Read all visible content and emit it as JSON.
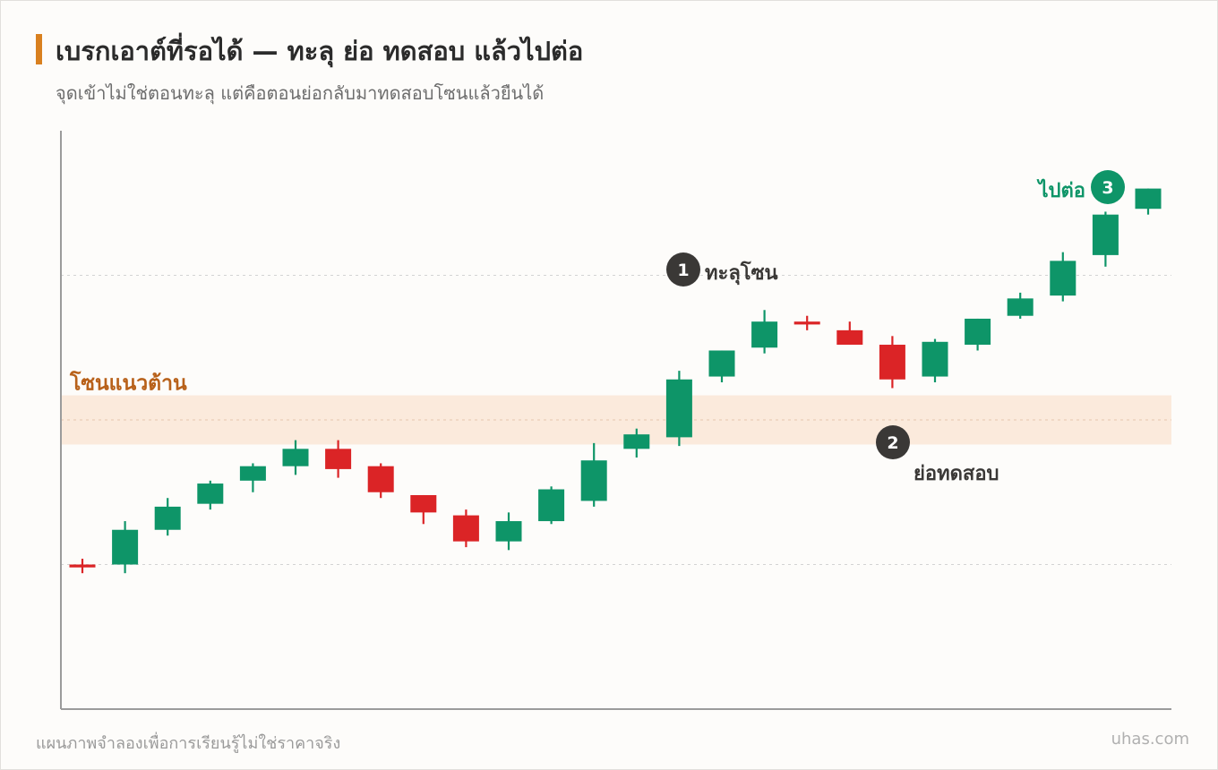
{
  "header": {
    "title": "เบรกเอาต์ที่รอได้ — ทะลุ ย่อ ทดสอบ แล้วไปต่อ",
    "subtitle": "จุดเข้าไม่ใช่ตอนทะลุ แต่คือตอนย่อกลับมาทดสอบโซนแล้วยืนได้"
  },
  "footer": {
    "note": "แผนภาพจำลองเพื่อการเรียนรู้ไม่ใช่ราคาจริง",
    "brand": "uhas.com"
  },
  "colors": {
    "up": "#0e9568",
    "down": "#db2426",
    "zone_fill": "#fbeadc",
    "zone_label": "#b8611a",
    "annotation_dark": "#3a3836",
    "annotation_green": "#0e9568",
    "axis": "#9b9b9b",
    "grid": "#d3d3d3"
  },
  "chart_data": {
    "type": "candlestick",
    "y_range": [
      0,
      100
    ],
    "grid_levels": [
      25,
      50,
      75
    ],
    "resistance_zone": {
      "low": 45.75,
      "high": 54.25,
      "label": "โซนแนวต้าน"
    },
    "candles": [
      {
        "o": 25.0,
        "h": 26.0,
        "l": 23.5,
        "c": 24.5
      },
      {
        "o": 25.0,
        "h": 32.5,
        "l": 23.5,
        "c": 31.0
      },
      {
        "o": 31.0,
        "h": 36.5,
        "l": 30.0,
        "c": 35.0
      },
      {
        "o": 35.5,
        "h": 39.5,
        "l": 34.5,
        "c": 39.0
      },
      {
        "o": 39.5,
        "h": 42.5,
        "l": 37.5,
        "c": 42.0
      },
      {
        "o": 42.0,
        "h": 46.5,
        "l": 40.5,
        "c": 45.0
      },
      {
        "o": 45.0,
        "h": 46.5,
        "l": 40.0,
        "c": 41.5
      },
      {
        "o": 42.0,
        "h": 42.5,
        "l": 36.5,
        "c": 37.5
      },
      {
        "o": 37.0,
        "h": 37.0,
        "l": 32.0,
        "c": 34.0
      },
      {
        "o": 33.5,
        "h": 34.5,
        "l": 28.0,
        "c": 29.0
      },
      {
        "o": 29.0,
        "h": 34.0,
        "l": 27.5,
        "c": 32.5
      },
      {
        "o": 32.5,
        "h": 38.5,
        "l": 32.0,
        "c": 38.0
      },
      {
        "o": 36.0,
        "h": 46.0,
        "l": 35.0,
        "c": 43.0
      },
      {
        "o": 45.0,
        "h": 48.5,
        "l": 43.5,
        "c": 47.5
      },
      {
        "o": 47.0,
        "h": 58.5,
        "l": 45.5,
        "c": 57.0
      },
      {
        "o": 57.5,
        "h": 62.0,
        "l": 56.5,
        "c": 62.0
      },
      {
        "o": 62.5,
        "h": 69.0,
        "l": 61.5,
        "c": 67.0
      },
      {
        "o": 67.0,
        "h": 68.0,
        "l": 65.5,
        "c": 66.5
      },
      {
        "o": 65.5,
        "h": 67.0,
        "l": 63.0,
        "c": 63.0
      },
      {
        "o": 63.0,
        "h": 64.5,
        "l": 55.5,
        "c": 57.0
      },
      {
        "o": 57.5,
        "h": 64.0,
        "l": 56.5,
        "c": 63.5
      },
      {
        "o": 63.0,
        "h": 67.5,
        "l": 62.0,
        "c": 67.5
      },
      {
        "o": 68.0,
        "h": 72.0,
        "l": 67.5,
        "c": 71.0
      },
      {
        "o": 71.5,
        "h": 79.0,
        "l": 70.5,
        "c": 77.5
      },
      {
        "o": 78.5,
        "h": 86.0,
        "l": 76.5,
        "c": 85.5
      },
      {
        "o": 86.5,
        "h": 90.0,
        "l": 85.5,
        "c": 90.0
      }
    ],
    "annotations": [
      {
        "num": "1",
        "text": "ทะลุโซน",
        "candle": 14
      },
      {
        "num": "2",
        "text": "ย่อทดสอบ",
        "candle": 19
      },
      {
        "num": "3",
        "text": "ไปต่อ",
        "candle": 24
      }
    ]
  }
}
